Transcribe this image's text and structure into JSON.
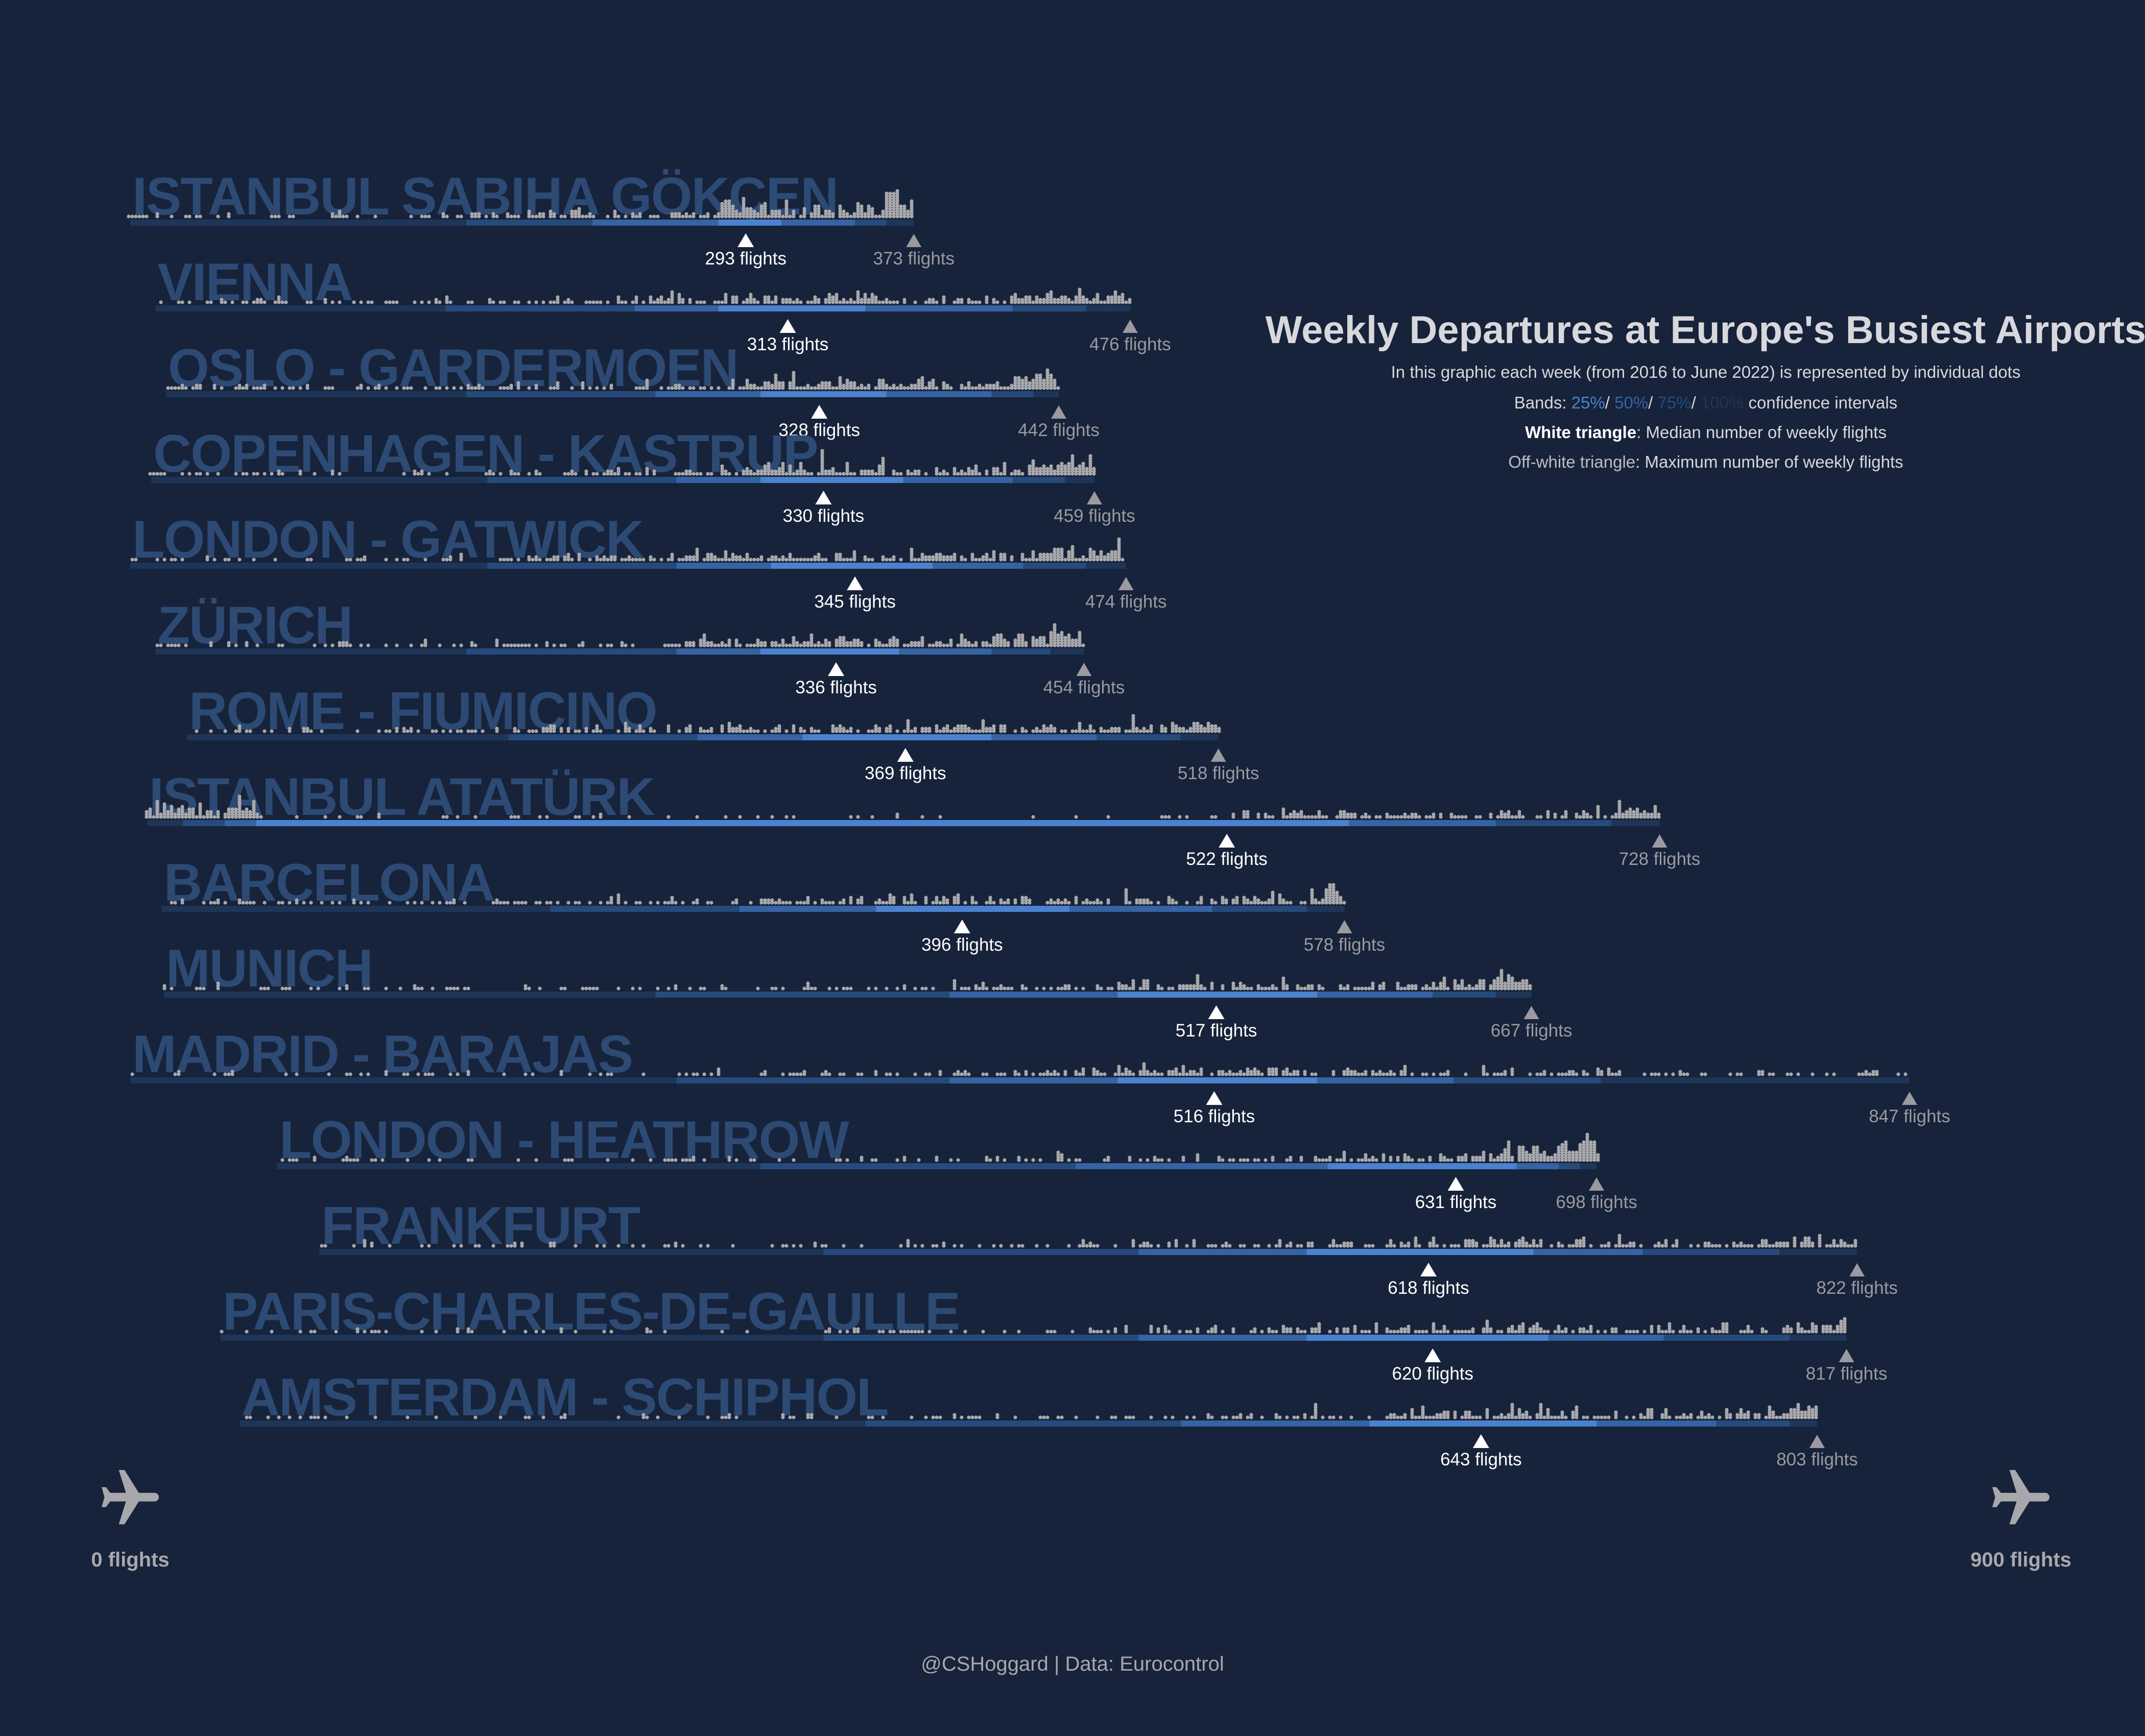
{
  "title": "Weekly Departures at Europe's Busiest Airports",
  "subtitle": "In this graphic each week (from 2016 to June 2022) is represented by individual dots",
  "legend": {
    "bands_prefix": "Bands: ",
    "band_labels": [
      "25%",
      "50%",
      "75%",
      "100%"
    ],
    "separator": "/ ",
    "bands_suffix": " confidence intervals",
    "white_triangle_key": "White triangle",
    "white_triangle_text": ": Median number of weekly flights",
    "offwhite_triangle_key": "Off-white triangle",
    "offwhite_triangle_text": ": Maximum number of weekly flights"
  },
  "axis": {
    "min_label": "0 flights",
    "max_label": "900 flights",
    "icon": "airplane-icon"
  },
  "footer": "@CSHoggard | Data: Eurocontrol",
  "colors": {
    "background": "#16233a",
    "airport_label": "#2d4a74",
    "dots": "#a8a8ac",
    "band_100": "#1e3558",
    "band_75": "#264a7c",
    "band_50": "#3563a3",
    "band_25": "#4b82cf",
    "median": "#ffffff",
    "max": "#9a9aa0",
    "text": "#d8d8dc"
  },
  "chart_data": {
    "type": "dot-distribution",
    "x_unit": "flights",
    "xlim": [
      0,
      900
    ],
    "airports": [
      {
        "name": "ISTANBUL SABIHA GÖKÇEN",
        "min": 0,
        "q12": 160,
        "q25": 220,
        "q375": 280,
        "median": 293,
        "q625": 310,
        "q75": 345,
        "q88": 360,
        "max": 373,
        "median_label": "293 flights",
        "max_label": "373 flights"
      },
      {
        "name": "VIENNA",
        "min": 12,
        "q12": 150,
        "q25": 240,
        "q375": 280,
        "median": 313,
        "q625": 350,
        "q75": 420,
        "q88": 455,
        "max": 476,
        "median_label": "313 flights",
        "max_label": "476 flights"
      },
      {
        "name": "OSLO - GARDERMOEN",
        "min": 17,
        "q12": 160,
        "q25": 250,
        "q375": 300,
        "median": 328,
        "q625": 360,
        "q75": 410,
        "q88": 430,
        "max": 442,
        "median_label": "328 flights",
        "max_label": "442 flights"
      },
      {
        "name": "COPENHAGEN - KASTRUP",
        "min": 10,
        "q12": 170,
        "q25": 260,
        "q375": 300,
        "median": 330,
        "q625": 368,
        "q75": 420,
        "q88": 445,
        "max": 459,
        "median_label": "330 flights",
        "max_label": "459 flights"
      },
      {
        "name": "LONDON - GATWICK",
        "min": 0,
        "q12": 170,
        "q25": 260,
        "q375": 305,
        "median": 345,
        "q625": 382,
        "q75": 425,
        "q88": 455,
        "max": 474,
        "median_label": "345 flights",
        "max_label": "474 flights"
      },
      {
        "name": "ZÜRICH",
        "min": 12,
        "q12": 160,
        "q25": 260,
        "q375": 300,
        "median": 336,
        "q625": 366,
        "q75": 410,
        "q88": 438,
        "max": 454,
        "median_label": "336 flights",
        "max_label": "454 flights"
      },
      {
        "name": "ROME - FIUMICINO",
        "min": 27,
        "q12": 180,
        "q25": 270,
        "q375": 320,
        "median": 369,
        "q625": 410,
        "q75": 460,
        "q88": 500,
        "max": 518,
        "median_label": "369 flights",
        "max_label": "518 flights"
      },
      {
        "name": "ISTANBUL ATATÜRK",
        "min": 8,
        "q12": 25,
        "q25": 45,
        "q375": 60,
        "median": 522,
        "q625": 580,
        "q75": 650,
        "q88": 705,
        "max": 728,
        "median_label": "522 flights",
        "max_label": "728 flights"
      },
      {
        "name": "BARCELONA",
        "min": 15,
        "q12": 200,
        "q25": 290,
        "q375": 355,
        "median": 396,
        "q625": 447,
        "q75": 515,
        "q88": 560,
        "max": 578,
        "median_label": "396 flights",
        "max_label": "578 flights"
      },
      {
        "name": "MUNICH",
        "min": 16,
        "q12": 250,
        "q25": 390,
        "q375": 470,
        "median": 517,
        "q625": 565,
        "q75": 620,
        "q88": 650,
        "max": 667,
        "median_label": "517 flights",
        "max_label": "667 flights"
      },
      {
        "name": "MADRID - BARAJAS",
        "min": 0,
        "q12": 260,
        "q25": 390,
        "q375": 470,
        "median": 516,
        "q625": 565,
        "q75": 630,
        "q88": 700,
        "max": 847,
        "median_label": "516 flights",
        "max_label": "847 flights"
      },
      {
        "name": "LONDON - HEATHROW",
        "min": 70,
        "q12": 300,
        "q25": 450,
        "q375": 570,
        "median": 631,
        "q625": 660,
        "q75": 680,
        "q88": 690,
        "max": 698,
        "median_label": "631 flights",
        "max_label": "698 flights"
      },
      {
        "name": "FRANKFURT",
        "min": 90,
        "q12": 330,
        "q25": 480,
        "q375": 560,
        "median": 618,
        "q625": 668,
        "q75": 720,
        "q88": 785,
        "max": 822,
        "median_label": "618 flights",
        "max_label": "822 flights"
      },
      {
        "name": "PARIS-CHARLES-DE-GAULLE",
        "min": 43,
        "q12": 330,
        "q25": 480,
        "q375": 560,
        "median": 620,
        "q625": 675,
        "q75": 730,
        "q88": 790,
        "max": 817,
        "median_label": "620 flights",
        "max_label": "817 flights"
      },
      {
        "name": "AMSTERDAM - SCHIPHOL",
        "min": 52,
        "q12": 350,
        "q25": 500,
        "q375": 590,
        "median": 643,
        "q625": 698,
        "q75": 755,
        "q88": 790,
        "max": 803,
        "median_label": "643 flights",
        "max_label": "803 flights"
      }
    ]
  }
}
